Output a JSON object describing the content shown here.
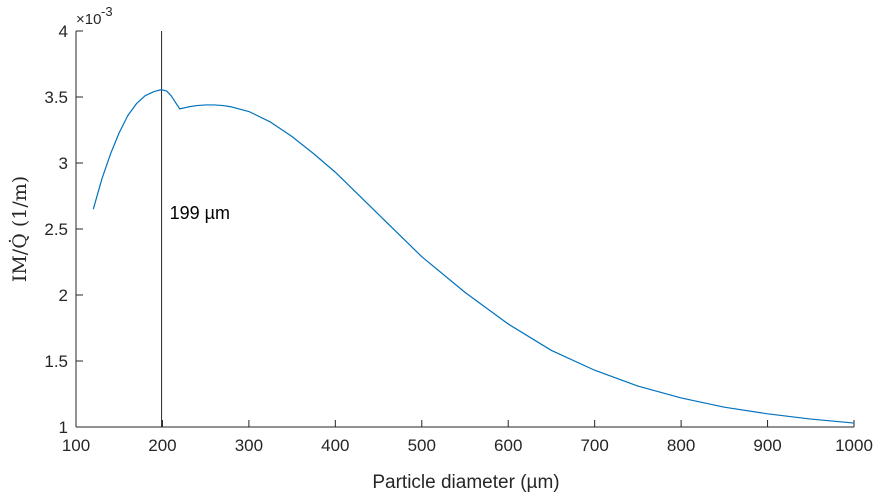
{
  "chart_data": {
    "type": "line",
    "xlabel": "Particle diameter (µm)",
    "ylabel": "IM/Q̇ (1/m)",
    "y_exponent_label": "×10",
    "y_exponent": "-3",
    "xlim": [
      100,
      1000
    ],
    "ylim": [
      1,
      4
    ],
    "xticks": [
      100,
      200,
      300,
      400,
      500,
      600,
      700,
      800,
      900,
      1000
    ],
    "yticks": [
      1,
      1.5,
      2,
      2.5,
      3,
      3.5,
      4
    ],
    "ytick_labels": [
      "1",
      "1.5",
      "2",
      "2.5",
      "3",
      "3.5",
      "4"
    ],
    "grid": false,
    "series": [
      {
        "color": "#0072BD",
        "x": [
          120,
          130,
          140,
          150,
          160,
          170,
          180,
          190,
          195,
          199,
          205,
          210,
          215,
          220,
          230,
          240,
          250,
          260,
          270,
          280,
          300,
          325,
          350,
          375,
          400,
          425,
          450,
          475,
          500,
          550,
          600,
          650,
          700,
          750,
          800,
          850,
          900,
          950,
          1000
        ],
        "y": [
          2.65,
          2.88,
          3.07,
          3.23,
          3.36,
          3.45,
          3.51,
          3.54,
          3.55,
          3.555,
          3.545,
          3.51,
          3.46,
          3.41,
          3.425,
          3.435,
          3.44,
          3.44,
          3.435,
          3.425,
          3.39,
          3.31,
          3.2,
          3.07,
          2.93,
          2.77,
          2.61,
          2.45,
          2.29,
          2.02,
          1.78,
          1.58,
          1.43,
          1.31,
          1.22,
          1.15,
          1.1,
          1.06,
          1.03
        ]
      }
    ],
    "vline": {
      "x": 199,
      "color": "#262626"
    },
    "annotation": {
      "text": "199 µm",
      "x": 199,
      "y": 2.62
    }
  }
}
